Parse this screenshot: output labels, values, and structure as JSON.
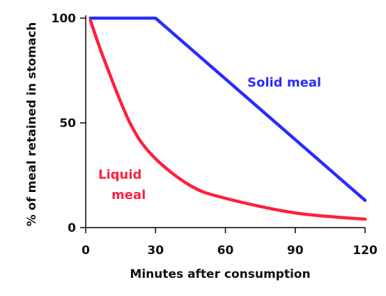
{
  "chart_data": {
    "type": "line",
    "xlabel": "Minutes after consumption",
    "ylabel": "% of meal retained in stomach",
    "xlim": [
      0,
      120
    ],
    "ylim": [
      0,
      100
    ],
    "x_ticks": [
      "0",
      "30",
      "60",
      "90",
      "120"
    ],
    "y_ticks": [
      "0",
      "50",
      "100"
    ],
    "grid": false,
    "legend": "none",
    "series": [
      {
        "name": "Solid meal",
        "color": "#2b2bff",
        "points": [
          [
            2,
            100
          ],
          [
            30,
            100
          ],
          [
            120,
            13
          ]
        ]
      },
      {
        "name": "Liquid meal",
        "color": "#ff1f3d",
        "points": [
          [
            2,
            99
          ],
          [
            8,
            80
          ],
          [
            19,
            50
          ],
          [
            29,
            34
          ],
          [
            45,
            20
          ],
          [
            60,
            14
          ],
          [
            90,
            7
          ],
          [
            120,
            4
          ]
        ]
      }
    ]
  }
}
